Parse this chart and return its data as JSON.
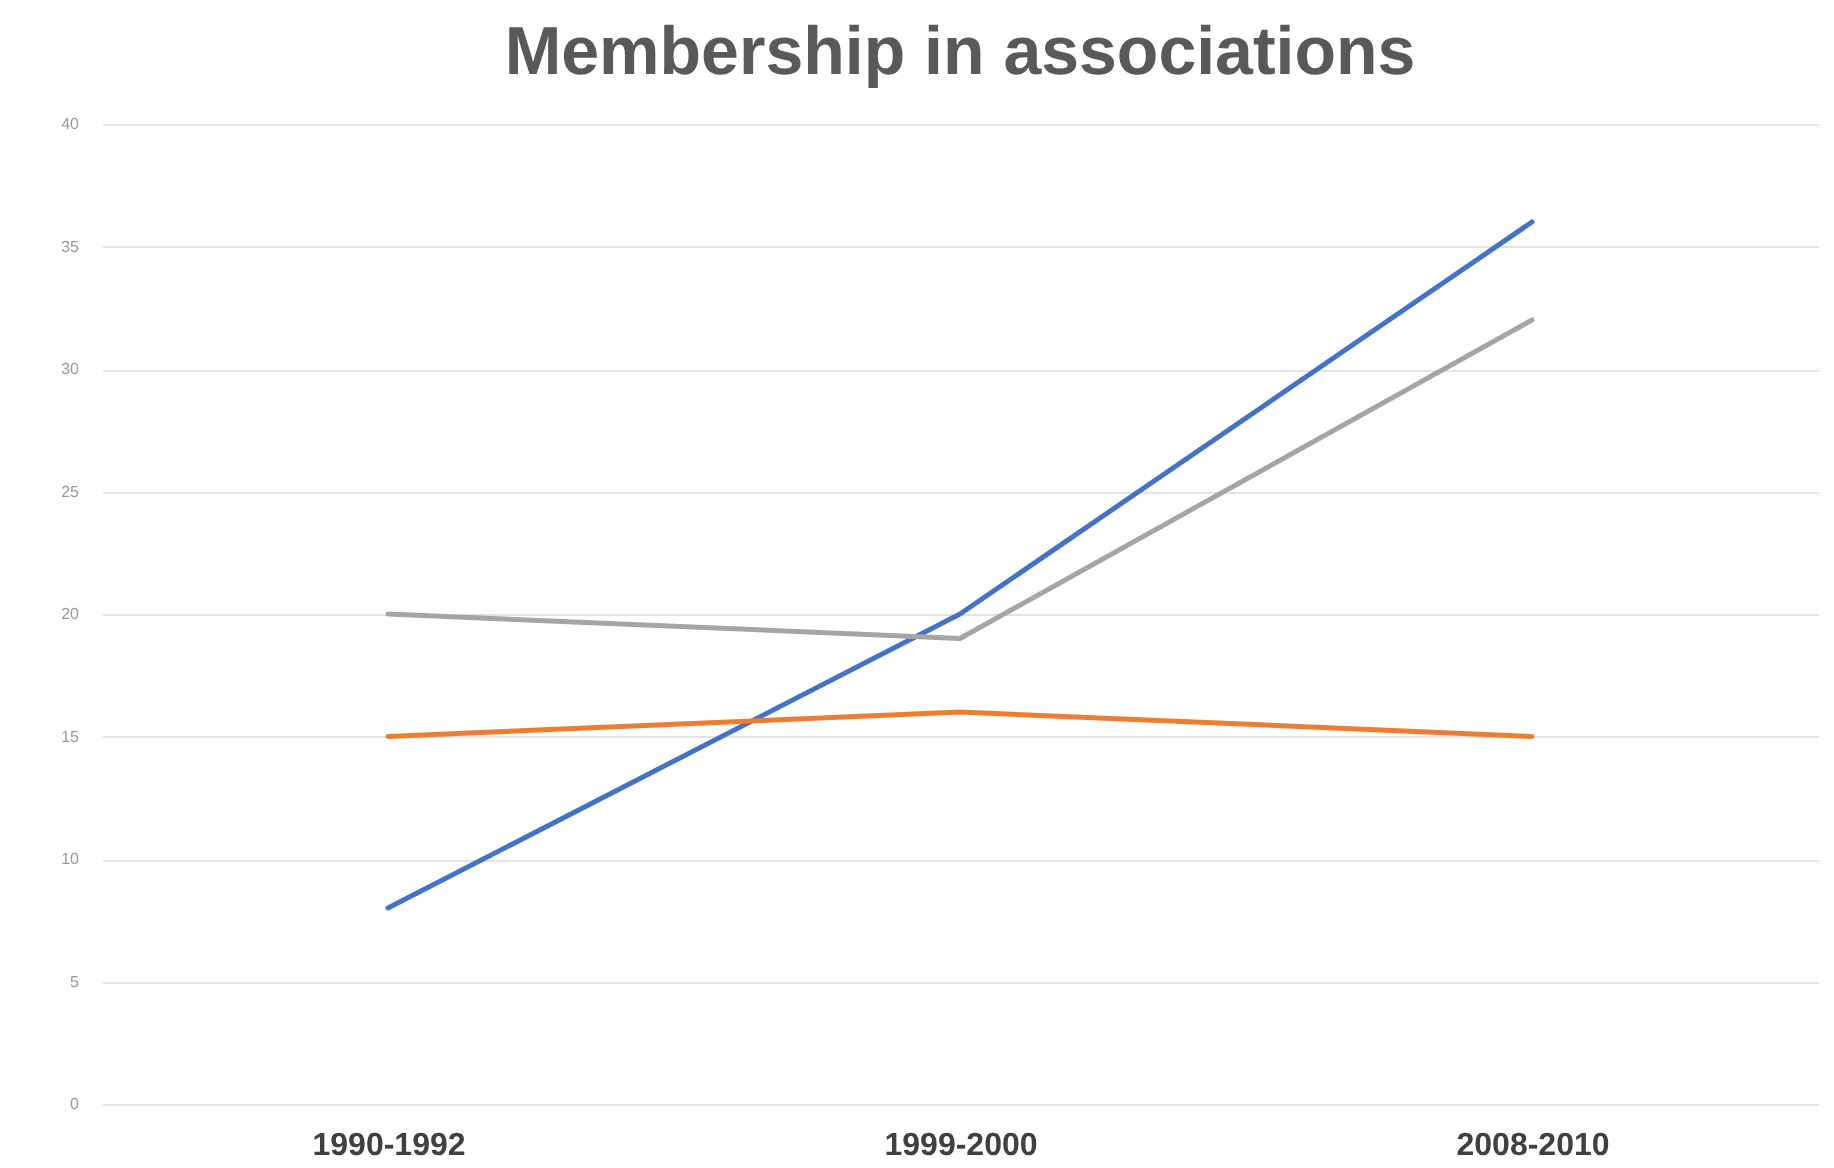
{
  "chart_data": {
    "type": "line",
    "title": "Membership in associations",
    "categories": [
      "1990-1992",
      "1999-2000",
      "2008-2010"
    ],
    "series": [
      {
        "color": "#4472c4",
        "values": [
          8,
          20,
          36
        ]
      },
      {
        "color": "#ed7d31",
        "values": [
          15,
          16,
          15
        ]
      },
      {
        "color": "#a5a5a5",
        "values": [
          20,
          19,
          32
        ]
      }
    ],
    "ylim": [
      0,
      40
    ],
    "yticks": [
      0,
      5,
      10,
      15,
      20,
      25,
      30,
      35,
      40
    ],
    "grid": "y",
    "legend": false
  }
}
